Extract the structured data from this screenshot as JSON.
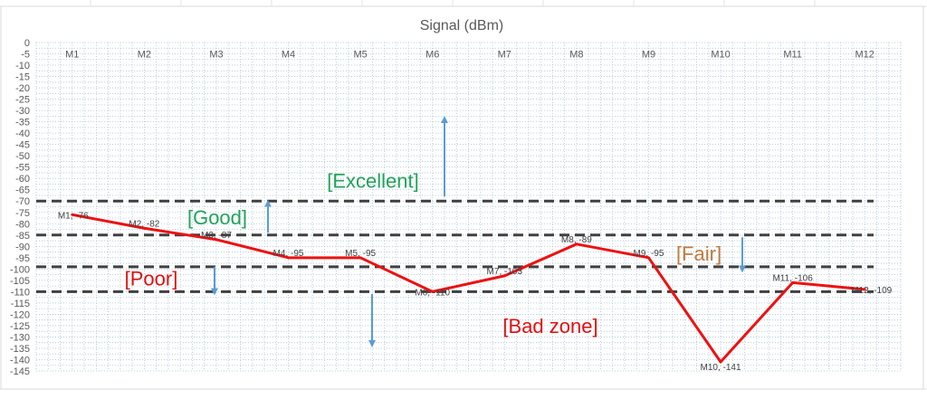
{
  "chart_data": {
    "type": "line",
    "title": "Signal (dBm)",
    "categories": [
      "M1",
      "M2",
      "M3",
      "M4",
      "M5",
      "M6",
      "M7",
      "M8",
      "M9",
      "M10",
      "M11",
      "M12"
    ],
    "series": [
      {
        "values": [
          -76,
          -82,
          -87,
          -95,
          -95,
          -110,
          -103,
          -89,
          -95,
          -141,
          -106,
          -109
        ]
      }
    ],
    "data_labels": [
      "M1, -76",
      "M2, -82",
      "M3, -87",
      "M4, -95",
      "M5, -95",
      "M6, -110",
      "M7, -103",
      "M8, -89",
      "M9, -95",
      "M10, -141",
      "M11, -106",
      "M12, -109"
    ],
    "x_axis_position": "top",
    "ylim": [
      -145,
      0
    ],
    "ytick_step": 5,
    "grid": "dotted",
    "thresholds": [
      -70,
      -85,
      -99,
      -110
    ],
    "zones": [
      {
        "label": "[Excellent]",
        "color": "#22a35a",
        "anchor_y": -61,
        "arrow_from": -68,
        "arrow_to": -34
      },
      {
        "label": "[Good]",
        "color": "#22a35a",
        "anchor_y": -77,
        "arrow_from": -84,
        "arrow_to": -71
      },
      {
        "label": "[Fair]",
        "color": "#c07a3e",
        "anchor_y": -93,
        "arrow_from": -86,
        "arrow_to": -100
      },
      {
        "label": "[Poor]",
        "color": "#e01010",
        "anchor_y": -104,
        "arrow_from": -99,
        "arrow_to": -110
      },
      {
        "label": "[Bad zone]",
        "color": "#e01010",
        "anchor_y": -125,
        "arrow_from": -111,
        "arrow_to": -133
      }
    ],
    "colors": {
      "line": "#ee1111",
      "threshold": "#404040",
      "arrow": "#5b9bd5",
      "grid": "#a8c4de"
    }
  }
}
